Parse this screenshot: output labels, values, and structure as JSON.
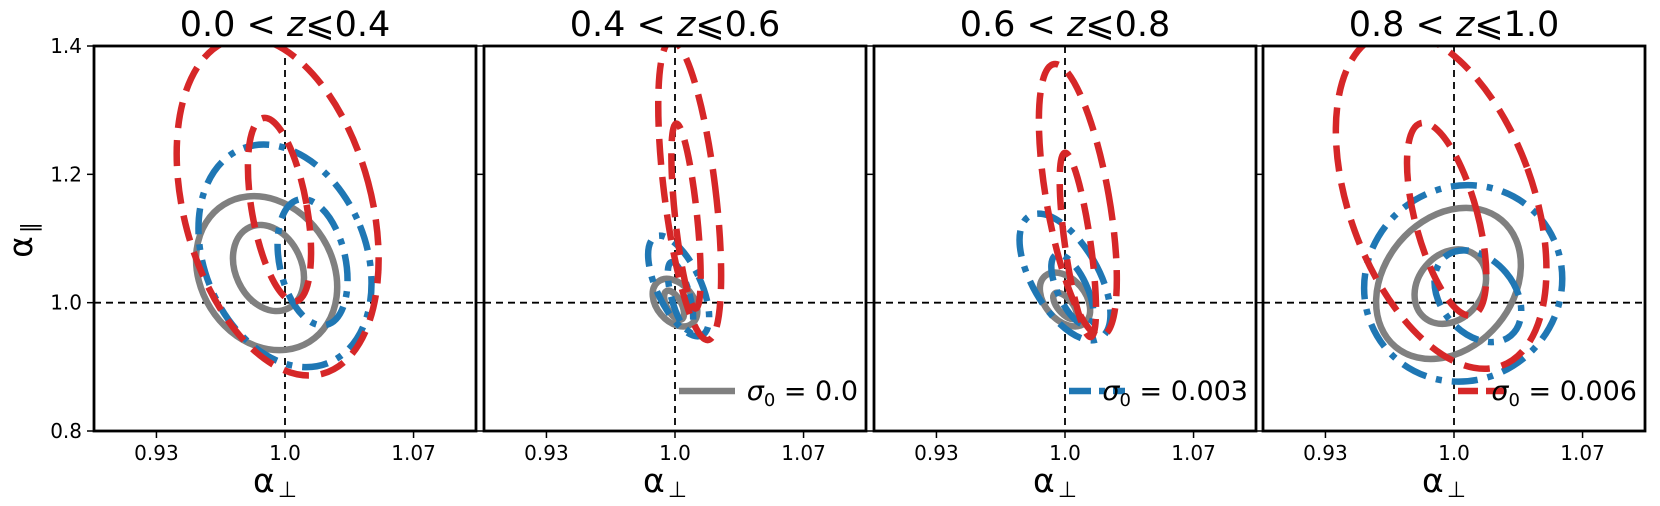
{
  "chart_data": {
    "type": "contour",
    "ylabel_greek": "α",
    "ylabel_sub": "∥",
    "xlabel_greek": "α",
    "xlabel_sub": "⊥",
    "xlim": [
      0.896,
      1.104
    ],
    "ylim": [
      0.8,
      1.4
    ],
    "xticks": [
      {
        "value": 0.93,
        "label": "0.93"
      },
      {
        "value": 1.0,
        "label": "1.0"
      },
      {
        "value": 1.07,
        "label": "1.07"
      }
    ],
    "yticks": [
      {
        "value": 0.8,
        "label": "0.8"
      },
      {
        "value": 1.0,
        "label": "1.0"
      },
      {
        "value": 1.2,
        "label": "1.2"
      },
      {
        "value": 1.4,
        "label": "1.4"
      }
    ],
    "reference_lines": {
      "x": 1.0,
      "y": 1.0,
      "style": "dashed",
      "color": "#000000"
    },
    "legend_entries": [
      {
        "name": "σ₀ = 0.0",
        "symbol": "σ",
        "sub": "0",
        "value": " = 0.0",
        "panel": 1
      },
      {
        "name": "σ₀ = 0.003",
        "symbol": "σ",
        "sub": "0",
        "value": " = 0.003",
        "panel": 2
      },
      {
        "name": "σ₀ = 0.006",
        "symbol": "σ",
        "sub": "0",
        "value": " = 0.006",
        "panel": 3
      }
    ],
    "series_style": {
      "sigma0_0": {
        "color": "#808080",
        "dash": "solid"
      },
      "sigma0_0.003": {
        "color": "#1f77b4",
        "dash": "dashdot"
      },
      "sigma0_0.006": {
        "color": "#d62728",
        "dash": "dashed"
      }
    },
    "panels": [
      {
        "title_left": "0.0",
        "title_var": "z",
        "title_right": "0.4",
        "contours": [
          {
            "series": "sigma0_0",
            "level": "1σ",
            "cx": 0.991,
            "cy": 1.054,
            "rx": 0.018,
            "ry": 0.07,
            "angle": -25
          },
          {
            "series": "sigma0_0",
            "level": "2σ",
            "cx": 0.99,
            "cy": 1.046,
            "rx": 0.036,
            "ry": 0.126,
            "angle": -32
          },
          {
            "series": "sigma0_0.003",
            "level": "1σ",
            "cx": 1.015,
            "cy": 1.063,
            "rx": 0.018,
            "ry": 0.1,
            "angle": -12
          },
          {
            "series": "sigma0_0.003",
            "level": "2σ",
            "cx": 1.0,
            "cy": 1.073,
            "rx": 0.044,
            "ry": 0.18,
            "angle": -22
          },
          {
            "series": "sigma0_0.006",
            "level": "1σ",
            "cx": 0.997,
            "cy": 1.145,
            "rx": 0.015,
            "ry": 0.145,
            "angle": -10
          },
          {
            "series": "sigma0_0.006",
            "level": "2σ",
            "cx": 0.996,
            "cy": 1.15,
            "rx": 0.051,
            "ry": 0.27,
            "angle": -15
          }
        ]
      },
      {
        "title_left": "0.4",
        "title_var": "z",
        "title_right": "0.6",
        "contours": [
          {
            "series": "sigma0_0",
            "level": "1σ",
            "cx": 0.9995,
            "cy": 0.996,
            "rx": 0.004,
            "ry": 0.025,
            "angle": -28
          },
          {
            "series": "sigma0_0",
            "level": "2σ",
            "cx": 1.0,
            "cy": 1.0,
            "rx": 0.01,
            "ry": 0.042,
            "angle": -40
          },
          {
            "series": "sigma0_0.003",
            "level": "1σ",
            "cx": 1.003,
            "cy": 1.01,
            "rx": 0.005,
            "ry": 0.055,
            "angle": -15
          },
          {
            "series": "sigma0_0.003",
            "level": "2σ",
            "cx": 1.002,
            "cy": 1.026,
            "rx": 0.012,
            "ry": 0.085,
            "angle": -25
          },
          {
            "series": "sigma0_0.006",
            "level": "1σ",
            "cx": 1.006,
            "cy": 1.135,
            "rx": 0.006,
            "ry": 0.145,
            "angle": -6
          },
          {
            "series": "sigma0_0.006",
            "level": "2σ",
            "cx": 1.008,
            "cy": 1.175,
            "rx": 0.014,
            "ry": 0.235,
            "angle": -7
          }
        ]
      },
      {
        "title_left": "0.6",
        "title_var": "z",
        "title_right": "0.8",
        "contours": [
          {
            "series": "sigma0_0",
            "level": "1σ",
            "cx": 1.0,
            "cy": 0.995,
            "rx": 0.004,
            "ry": 0.025,
            "angle": -40
          },
          {
            "series": "sigma0_0",
            "level": "2σ",
            "cx": 1.0,
            "cy": 1.005,
            "rx": 0.011,
            "ry": 0.048,
            "angle": -40
          },
          {
            "series": "sigma0_0.003",
            "level": "1σ",
            "cx": 1.004,
            "cy": 1.02,
            "rx": 0.008,
            "ry": 0.06,
            "angle": -25
          },
          {
            "series": "sigma0_0.003",
            "level": "2σ",
            "cx": 1.0,
            "cy": 1.04,
            "rx": 0.018,
            "ry": 0.11,
            "angle": -30
          },
          {
            "series": "sigma0_0.006",
            "level": "1σ",
            "cx": 1.007,
            "cy": 1.09,
            "rx": 0.007,
            "ry": 0.145,
            "angle": -8
          },
          {
            "series": "sigma0_0.006",
            "level": "2σ",
            "cx": 1.007,
            "cy": 1.16,
            "rx": 0.017,
            "ry": 0.215,
            "angle": -10
          }
        ]
      },
      {
        "title_left": "0.8",
        "title_var": "z",
        "title_right": "1.0",
        "contours": [
          {
            "series": "sigma0_0",
            "level": "1σ",
            "cx": 0.998,
            "cy": 1.025,
            "rx": 0.022,
            "ry": 0.05,
            "angle": -50
          },
          {
            "series": "sigma0_0",
            "level": "2σ",
            "cx": 0.997,
            "cy": 1.03,
            "rx": 0.045,
            "ry": 0.1,
            "angle": -50
          },
          {
            "series": "sigma0_0.003",
            "level": "1σ",
            "cx": 1.013,
            "cy": 1.01,
            "rx": 0.02,
            "ry": 0.08,
            "angle": -40
          },
          {
            "series": "sigma0_0.003",
            "level": "2σ",
            "cx": 1.005,
            "cy": 1.03,
            "rx": 0.055,
            "ry": 0.15,
            "angle": -40
          },
          {
            "series": "sigma0_0.006",
            "level": "1σ",
            "cx": 0.996,
            "cy": 1.13,
            "rx": 0.017,
            "ry": 0.155,
            "angle": -15
          },
          {
            "series": "sigma0_0.006",
            "level": "2σ",
            "cx": 0.993,
            "cy": 1.16,
            "rx": 0.05,
            "ry": 0.275,
            "angle": -20
          }
        ]
      }
    ]
  }
}
